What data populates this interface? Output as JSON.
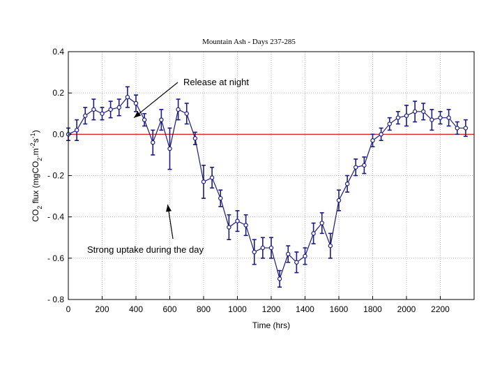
{
  "chart_data": {
    "type": "line",
    "title": "Mountain Ash - Days 237-285",
    "xlabel": "Time (hrs)",
    "ylabel_parts": [
      "CO",
      "2",
      " flux (mgCO",
      "2",
      ".m",
      "-2",
      "s",
      "-1",
      ")"
    ],
    "xlim": [
      0,
      2400
    ],
    "ylim": [
      -0.8,
      0.4
    ],
    "x_ticks": [
      0,
      200,
      400,
      600,
      800,
      1000,
      1200,
      1400,
      1600,
      1800,
      2000,
      2200
    ],
    "y_ticks": [
      0.4,
      0.2,
      0.0,
      -0.2,
      -0.4,
      -0.6,
      -0.8
    ],
    "y_tick_labels": [
      "0.4",
      "0.2",
      "0.0",
      "- 0.2",
      "- 0.4",
      "- 0.6",
      "- 0.8"
    ],
    "grid": true,
    "reference_line": {
      "y": 0,
      "color": "#e00000"
    },
    "series": [
      {
        "color": "#1a1a80",
        "x": [
          0,
          50,
          100,
          150,
          200,
          250,
          300,
          350,
          400,
          450,
          500,
          550,
          600,
          650,
          700,
          750,
          800,
          850,
          900,
          950,
          1000,
          1050,
          1100,
          1150,
          1200,
          1250,
          1300,
          1350,
          1400,
          1450,
          1500,
          1550,
          1600,
          1650,
          1700,
          1750,
          1800,
          1850,
          1900,
          1950,
          2000,
          2050,
          2100,
          2150,
          2200,
          2250,
          2300,
          2350
        ],
        "y": [
          0.0,
          0.02,
          0.09,
          0.12,
          0.1,
          0.12,
          0.13,
          0.18,
          0.15,
          0.07,
          -0.04,
          0.07,
          -0.07,
          0.12,
          0.1,
          -0.02,
          -0.23,
          -0.21,
          -0.31,
          -0.45,
          -0.42,
          -0.44,
          -0.57,
          -0.55,
          -0.55,
          -0.7,
          -0.58,
          -0.62,
          -0.59,
          -0.48,
          -0.43,
          -0.54,
          -0.32,
          -0.24,
          -0.16,
          -0.15,
          -0.03,
          0.0,
          0.05,
          0.08,
          0.09,
          0.11,
          0.11,
          0.07,
          0.08,
          0.08,
          0.03,
          0.03
        ],
        "err": [
          0.03,
          0.05,
          0.04,
          0.05,
          0.03,
          0.04,
          0.04,
          0.05,
          0.04,
          0.03,
          0.06,
          0.05,
          0.1,
          0.05,
          0.05,
          0.03,
          0.08,
          0.05,
          0.04,
          0.06,
          0.05,
          0.05,
          0.06,
          0.05,
          0.05,
          0.04,
          0.04,
          0.05,
          0.04,
          0.05,
          0.05,
          0.06,
          0.05,
          0.04,
          0.04,
          0.04,
          0.03,
          0.03,
          0.03,
          0.03,
          0.05,
          0.05,
          0.04,
          0.05,
          0.03,
          0.04,
          0.03,
          0.04
        ]
      }
    ],
    "annotations": [
      {
        "text": "Release at night",
        "x": 400,
        "y": 0.09
      },
      {
        "text": "Strong uptake during the day",
        "x": 1000,
        "y": -0.33
      }
    ]
  }
}
